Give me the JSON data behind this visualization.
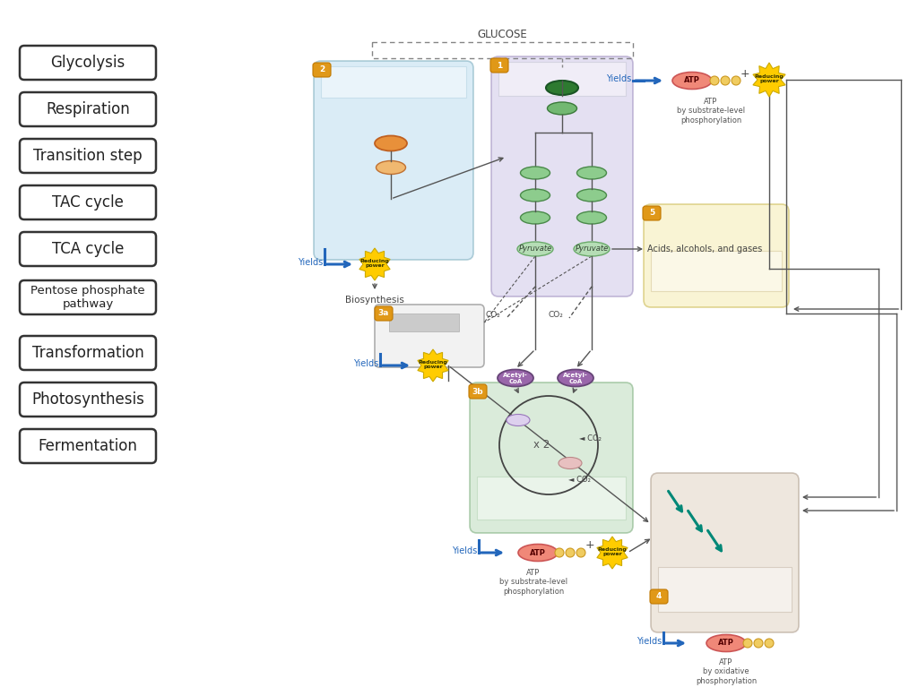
{
  "legend_labels": [
    "Glycolysis",
    "Respiration",
    "Transition step",
    "TAC cycle",
    "TCA cycle",
    "Pentose phosphate\npathway",
    "Transformation",
    "Photosynthesis",
    "Fermentation"
  ],
  "bg_color": "#ffffff",
  "box1_color": "#cfc8e8",
  "box2_color": "#bcddf0",
  "box3_color": "#bddcbd",
  "box4_color": "#e0d4c4",
  "box5_color": "#f5edb8",
  "glucose_label": "GLUCOSE",
  "biosynthesis_label": "Biosynthesis",
  "yields_label": "Yields",
  "reducing_power_label": "Reducing\npower",
  "atp_substrate_label": "ATP\nby substrate-level\nphosphorylation",
  "atp_oxidative_label": "ATP\nby oxidative\nphosphorylation",
  "acids_label": "Acids, alcohols, and gases",
  "co2_label": "CO₂",
  "x2_label": "x 2",
  "pyruvate_label": "Pyruvate",
  "acetyl_coa_label": "Acetyl-\nCoA"
}
